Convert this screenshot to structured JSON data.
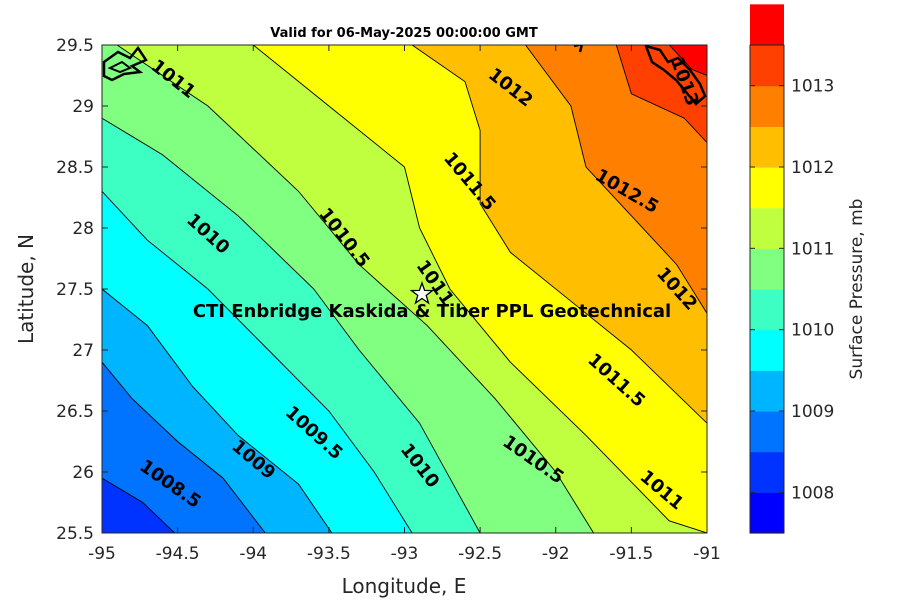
{
  "chart_data": {
    "type": "contour",
    "title": "Valid for 06-May-2025 00:00:00 GMT",
    "xlabel": "Longitude, E",
    "ylabel": "Latitude, N",
    "xlim": [
      -95,
      -91
    ],
    "ylim": [
      25.5,
      29.5
    ],
    "x_ticks": [
      "-95",
      "-94.5",
      "-94",
      "-93.5",
      "-93",
      "-92.5",
      "-92",
      "-91.5",
      "-91"
    ],
    "y_ticks": [
      "29.5",
      "29",
      "28.5",
      "28",
      "27.5",
      "27",
      "26.5",
      "26",
      "25.5"
    ],
    "grid": false,
    "colorbar": {
      "label": "Surface Pressure, mb",
      "ticks": [
        "1008",
        "1009",
        "1010",
        "1011",
        "1012",
        "1013"
      ],
      "range": [
        1007.5,
        1013.5
      ],
      "band_width": 0.5,
      "colors": [
        "#0000ff",
        "#0033ff",
        "#0073ff",
        "#00b5ff",
        "#00ffff",
        "#3dffc3",
        "#80ff80",
        "#bfff3f",
        "#ffff00",
        "#ffbf00",
        "#ff7f00",
        "#ff4000",
        "#ff0000"
      ]
    },
    "contour_levels": [
      {
        "level": 1008.0,
        "points": [
          [
            -95.0,
            25.95
          ],
          [
            -94.73,
            25.75
          ],
          [
            -94.52,
            25.5
          ]
        ]
      },
      {
        "level": 1008.5,
        "points": [
          [
            -95.0,
            26.9
          ],
          [
            -94.8,
            26.6
          ],
          [
            -94.5,
            26.25
          ],
          [
            -94.2,
            25.95
          ],
          [
            -93.92,
            25.5
          ]
        ]
      },
      {
        "level": 1009.0,
        "points": [
          [
            -95.0,
            27.5
          ],
          [
            -94.7,
            27.2
          ],
          [
            -94.4,
            26.7
          ],
          [
            -94.1,
            26.3
          ],
          [
            -93.7,
            25.9
          ],
          [
            -93.48,
            25.5
          ]
        ]
      },
      {
        "level": 1009.5,
        "points": [
          [
            -95.0,
            28.3
          ],
          [
            -94.7,
            27.9
          ],
          [
            -94.3,
            27.5
          ],
          [
            -93.9,
            27.0
          ],
          [
            -93.5,
            26.5
          ],
          [
            -93.2,
            26.0
          ],
          [
            -92.95,
            25.5
          ]
        ]
      },
      {
        "level": 1010.0,
        "points": [
          [
            -95.0,
            28.9
          ],
          [
            -94.6,
            28.6
          ],
          [
            -94.1,
            28.1
          ],
          [
            -93.6,
            27.5
          ],
          [
            -93.3,
            27.0
          ],
          [
            -92.9,
            26.4
          ],
          [
            -92.5,
            25.5
          ]
        ]
      },
      {
        "level": 1010.5,
        "points": [
          [
            -94.9,
            29.5
          ],
          [
            -94.3,
            29.0
          ],
          [
            -93.7,
            28.3
          ],
          [
            -93.3,
            27.7
          ],
          [
            -92.85,
            27.2
          ],
          [
            -92.4,
            26.6
          ],
          [
            -92.0,
            26.0
          ],
          [
            -91.75,
            25.5
          ]
        ]
      },
      {
        "level": 1011.0,
        "points": [
          [
            -94.0,
            29.5
          ],
          [
            -93.5,
            29.0
          ],
          [
            -93.0,
            28.5
          ],
          [
            -92.9,
            28.0
          ],
          [
            -92.7,
            27.5
          ],
          [
            -92.3,
            26.9
          ],
          [
            -91.8,
            26.3
          ],
          [
            -91.25,
            25.6
          ],
          [
            -91.0,
            25.5
          ]
        ]
      },
      {
        "level": 1011.5,
        "points": [
          [
            -92.95,
            29.5
          ],
          [
            -92.6,
            29.2
          ],
          [
            -92.5,
            28.8
          ],
          [
            -92.5,
            28.2
          ],
          [
            -92.3,
            27.8
          ],
          [
            -91.9,
            27.4
          ],
          [
            -91.5,
            27.0
          ],
          [
            -91.0,
            26.4
          ]
        ]
      },
      {
        "level": 1012.0,
        "points": [
          [
            -92.2,
            29.5
          ],
          [
            -91.9,
            29.0
          ],
          [
            -91.8,
            28.5
          ],
          [
            -91.5,
            28.1
          ],
          [
            -91.2,
            27.7
          ],
          [
            -91.0,
            27.3
          ]
        ]
      },
      {
        "level": 1012.5,
        "points": [
          [
            -91.6,
            29.5
          ],
          [
            -91.5,
            29.1
          ],
          [
            -91.15,
            28.9
          ],
          [
            -91.0,
            28.7
          ]
        ]
      },
      {
        "level": 1013.0,
        "points": [
          [
            -91.25,
            29.5
          ],
          [
            -91.1,
            29.3
          ],
          [
            -91.0,
            29.25
          ]
        ]
      }
    ],
    "contour_labels": [
      {
        "text": "1011",
        "lon": -94.53,
        "lat": 29.22,
        "angle": 38
      },
      {
        "text": "1012",
        "lon": -92.3,
        "lat": 29.15,
        "angle": 38
      },
      {
        "text": "1011.5",
        "lon": -92.57,
        "lat": 28.38,
        "angle": 50
      },
      {
        "text": "1012.5",
        "lon": -91.53,
        "lat": 28.3,
        "angle": 30
      },
      {
        "text": "1010.5",
        "lon": -93.4,
        "lat": 27.92,
        "angle": 52
      },
      {
        "text": "1010",
        "lon": -94.3,
        "lat": 27.95,
        "angle": 42
      },
      {
        "text": "1011",
        "lon": -92.8,
        "lat": 27.55,
        "angle": 55
      },
      {
        "text": "1012",
        "lon": -91.2,
        "lat": 27.5,
        "angle": 48
      },
      {
        "text": "1011.5",
        "lon": -91.6,
        "lat": 26.75,
        "angle": 42
      },
      {
        "text": "1009.5",
        "lon": -93.6,
        "lat": 26.32,
        "angle": 42
      },
      {
        "text": "1009",
        "lon": -94.0,
        "lat": 26.1,
        "angle": 40
      },
      {
        "text": "1010",
        "lon": -92.9,
        "lat": 26.05,
        "angle": 52
      },
      {
        "text": "1010.5",
        "lon": -92.15,
        "lat": 26.1,
        "angle": 35
      },
      {
        "text": "1011",
        "lon": -91.3,
        "lat": 25.85,
        "angle": 40
      },
      {
        "text": "1008.5",
        "lon": -94.55,
        "lat": 25.9,
        "angle": 35
      },
      {
        "text": "1013",
        "lon": -91.15,
        "lat": 29.2,
        "angle": 70
      }
    ],
    "marker": {
      "symbol": "star",
      "lon": -92.87,
      "lat": 27.43
    },
    "annotation": {
      "text": "CTI Enbridge  Kaskida & Tiber PPL Geotechnical",
      "lon": -93.0,
      "lat": 27.33
    }
  }
}
